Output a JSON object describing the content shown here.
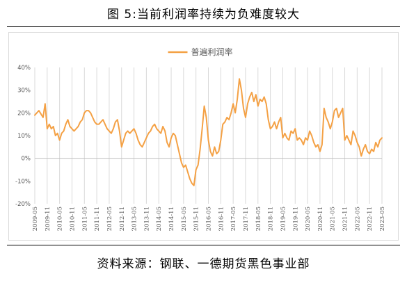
{
  "figure": {
    "title": "图 5:当前利润率持续为负难度较大",
    "source": "资料来源：钢联、一德期货黑色事业部"
  },
  "chart_data": {
    "type": "line",
    "series": [
      {
        "name": "普遍利润率",
        "color": "#F4A145",
        "points": [
          [
            "2009-05",
            19
          ],
          [
            "2009-07",
            21
          ],
          [
            "2009-09",
            18
          ],
          [
            "2009-10",
            24
          ],
          [
            "2009-11",
            13
          ],
          [
            "2009-12",
            15
          ],
          [
            "2010-01",
            13
          ],
          [
            "2010-02",
            14
          ],
          [
            "2010-03",
            10
          ],
          [
            "2010-04",
            11
          ],
          [
            "2010-05",
            8
          ],
          [
            "2010-06",
            11
          ],
          [
            "2010-07",
            12
          ],
          [
            "2010-08",
            15
          ],
          [
            "2010-09",
            17
          ],
          [
            "2010-10",
            14
          ],
          [
            "2010-11",
            13
          ],
          [
            "2010-12",
            12
          ],
          [
            "2011-01",
            13
          ],
          [
            "2011-02",
            14
          ],
          [
            "2011-03",
            16
          ],
          [
            "2011-04",
            17
          ],
          [
            "2011-05",
            20
          ],
          [
            "2011-06",
            21
          ],
          [
            "2011-07",
            21
          ],
          [
            "2011-08",
            20
          ],
          [
            "2011-09",
            18
          ],
          [
            "2011-10",
            16
          ],
          [
            "2011-11",
            15
          ],
          [
            "2011-12",
            15
          ],
          [
            "2012-01",
            16
          ],
          [
            "2012-02",
            17
          ],
          [
            "2012-03",
            15
          ],
          [
            "2012-04",
            13
          ],
          [
            "2012-05",
            12
          ],
          [
            "2012-06",
            11
          ],
          [
            "2012-07",
            13
          ],
          [
            "2012-08",
            16
          ],
          [
            "2012-09",
            17
          ],
          [
            "2012-10",
            12
          ],
          [
            "2012-11",
            5
          ],
          [
            "2012-12",
            8
          ],
          [
            "2013-01",
            11
          ],
          [
            "2013-02",
            12
          ],
          [
            "2013-03",
            11
          ],
          [
            "2013-04",
            12
          ],
          [
            "2013-05",
            13
          ],
          [
            "2013-06",
            11
          ],
          [
            "2013-07",
            8
          ],
          [
            "2013-08",
            6
          ],
          [
            "2013-09",
            5
          ],
          [
            "2013-10",
            7
          ],
          [
            "2013-11",
            9
          ],
          [
            "2013-12",
            11
          ],
          [
            "2014-01",
            12
          ],
          [
            "2014-02",
            14
          ],
          [
            "2014-03",
            15
          ],
          [
            "2014-04",
            13
          ],
          [
            "2014-05",
            12
          ],
          [
            "2014-06",
            11
          ],
          [
            "2014-07",
            14
          ],
          [
            "2014-08",
            12
          ],
          [
            "2014-09",
            7
          ],
          [
            "2014-10",
            5
          ],
          [
            "2014-11",
            9
          ],
          [
            "2014-12",
            11
          ],
          [
            "2015-01",
            10
          ],
          [
            "2015-02",
            6
          ],
          [
            "2015-03",
            2
          ],
          [
            "2015-04",
            -2
          ],
          [
            "2015-05",
            -4
          ],
          [
            "2015-06",
            -3
          ],
          [
            "2015-07",
            -6
          ],
          [
            "2015-08",
            -9
          ],
          [
            "2015-09",
            -11
          ],
          [
            "2015-10",
            -12
          ],
          [
            "2015-11",
            -5
          ],
          [
            "2015-12",
            -3
          ],
          [
            "2016-01",
            4
          ],
          [
            "2016-02",
            13
          ],
          [
            "2016-03",
            23
          ],
          [
            "2016-04",
            18
          ],
          [
            "2016-05",
            8
          ],
          [
            "2016-06",
            3
          ],
          [
            "2016-07",
            1
          ],
          [
            "2016-08",
            5
          ],
          [
            "2016-09",
            2
          ],
          [
            "2016-10",
            3
          ],
          [
            "2016-11",
            8
          ],
          [
            "2016-12",
            15
          ],
          [
            "2017-01",
            16
          ],
          [
            "2017-02",
            18
          ],
          [
            "2017-03",
            17
          ],
          [
            "2017-04",
            20
          ],
          [
            "2017-05",
            24
          ],
          [
            "2017-06",
            20
          ],
          [
            "2017-07",
            26
          ],
          [
            "2017-08",
            35
          ],
          [
            "2017-09",
            30
          ],
          [
            "2017-10",
            22
          ],
          [
            "2017-11",
            18
          ],
          [
            "2017-12",
            24
          ],
          [
            "2018-01",
            27
          ],
          [
            "2018-02",
            29
          ],
          [
            "2018-03",
            25
          ],
          [
            "2018-04",
            28
          ],
          [
            "2018-05",
            23
          ],
          [
            "2018-06",
            26
          ],
          [
            "2018-07",
            25
          ],
          [
            "2018-08",
            27
          ],
          [
            "2018-09",
            24
          ],
          [
            "2018-10",
            17
          ],
          [
            "2018-11",
            13
          ],
          [
            "2018-12",
            14
          ],
          [
            "2019-01",
            16
          ],
          [
            "2019-02",
            13
          ],
          [
            "2019-03",
            16
          ],
          [
            "2019-04",
            18
          ],
          [
            "2019-05",
            9
          ],
          [
            "2019-06",
            11
          ],
          [
            "2019-07",
            9
          ],
          [
            "2019-08",
            8
          ],
          [
            "2019-09",
            12
          ],
          [
            "2019-10",
            11
          ],
          [
            "2019-11",
            13
          ],
          [
            "2019-12",
            8
          ],
          [
            "2020-01",
            9
          ],
          [
            "2020-02",
            8
          ],
          [
            "2020-03",
            6
          ],
          [
            "2020-04",
            9
          ],
          [
            "2020-05",
            8
          ],
          [
            "2020-06",
            12
          ],
          [
            "2020-07",
            10
          ],
          [
            "2020-08",
            7
          ],
          [
            "2020-09",
            5
          ],
          [
            "2020-10",
            6
          ],
          [
            "2020-11",
            3
          ],
          [
            "2020-12",
            6
          ],
          [
            "2021-01",
            22
          ],
          [
            "2021-02",
            18
          ],
          [
            "2021-03",
            16
          ],
          [
            "2021-04",
            13
          ],
          [
            "2021-05",
            16
          ],
          [
            "2021-06",
            21
          ],
          [
            "2021-07",
            22
          ],
          [
            "2021-08",
            18
          ],
          [
            "2021-09",
            20
          ],
          [
            "2021-10",
            22
          ],
          [
            "2021-11",
            8
          ],
          [
            "2021-12",
            10
          ],
          [
            "2022-01",
            8
          ],
          [
            "2022-02",
            6
          ],
          [
            "2022-03",
            12
          ],
          [
            "2022-04",
            10
          ],
          [
            "2022-05",
            7
          ],
          [
            "2022-06",
            5
          ],
          [
            "2022-07",
            1
          ],
          [
            "2022-08",
            4
          ],
          [
            "2022-09",
            6
          ],
          [
            "2022-10",
            3
          ],
          [
            "2022-11",
            2
          ],
          [
            "2022-12",
            4
          ],
          [
            "2023-01",
            3
          ],
          [
            "2023-02",
            7
          ],
          [
            "2023-03",
            5
          ],
          [
            "2023-04",
            8
          ],
          [
            "2023-05",
            9
          ]
        ]
      }
    ],
    "y_ticks": [
      "40%",
      "30%",
      "20%",
      "10%",
      "0%",
      "-10%",
      "-20%"
    ],
    "y_tick_values": [
      40,
      30,
      20,
      10,
      0,
      -10,
      -20
    ],
    "ylim": [
      -20,
      40
    ],
    "x_ticks": [
      "2009-05",
      "2009-11",
      "2010-05",
      "2010-11",
      "2011-05",
      "2011-11",
      "2012-05",
      "2012-11",
      "2013-05",
      "2013-11",
      "2014-05",
      "2014-11",
      "2015-05",
      "2015-11",
      "2016-05",
      "2016-11",
      "2017-05",
      "2017-11",
      "2018-05",
      "2018-11",
      "2019-05",
      "2019-11",
      "2020-05",
      "2020-11",
      "2021-05",
      "2021-11",
      "2022-05",
      "2022-11",
      "2023-05"
    ],
    "xlim": [
      "2009-05",
      "2023-05"
    ],
    "grid": {
      "vertical": true,
      "horizontal": false
    },
    "legend_position": "top-center",
    "xlabel": "",
    "ylabel": ""
  }
}
